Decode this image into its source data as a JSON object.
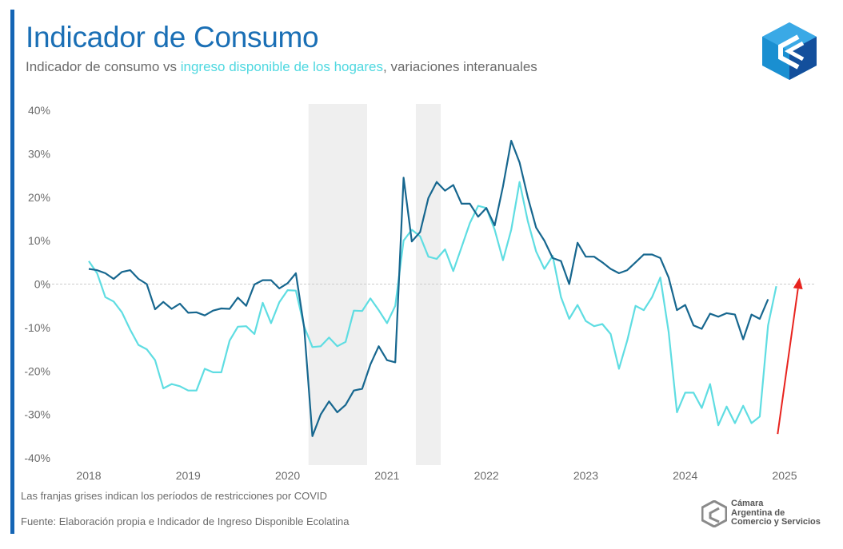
{
  "header": {
    "title": "Indicador de Consumo",
    "subtitle_prefix": "Indicador de consumo vs ",
    "subtitle_highlight": "ingreso disponible de los hogares",
    "subtitle_suffix": ", variaciones interanuales"
  },
  "footer": {
    "note": "Las franjas grises indican los períodos de restricciones por COVID",
    "source": "Fuente: Elaboración propia e Indicador de Ingreso Disponible Ecolatina",
    "org_line1": "Cámara",
    "org_line2": "Argentina de",
    "org_line3": "Comercio y Servicios"
  },
  "colors": {
    "title": "#1a6fb5",
    "consumo": "#17678f",
    "ingreso": "#5fdde2",
    "covid_band": "#efefef",
    "arrow": "#e8231e"
  },
  "chart_data": {
    "type": "line",
    "ylim": [
      -40,
      40
    ],
    "xlim": [
      2018,
      2025.25
    ],
    "y_ticks": [
      40,
      30,
      20,
      10,
      0,
      -10,
      -20,
      -30,
      -40
    ],
    "y_tick_labels": [
      "40%",
      "30%",
      "20%",
      "10%",
      "0%",
      "-10%",
      "-20%",
      "-30%",
      "-40%"
    ],
    "x_ticks": [
      2018,
      2019,
      2020,
      2021,
      2022,
      2023,
      2024,
      2025
    ],
    "x_tick_labels": [
      "2018",
      "2019",
      "2020",
      "2021",
      "2022",
      "2023",
      "2024",
      "2025"
    ],
    "x_start": "2018-01",
    "shaded_periods": [
      [
        2020.21,
        2020.8
      ],
      [
        2021.29,
        2021.54
      ]
    ],
    "grid": false,
    "zero_line": true,
    "series": [
      {
        "name": "Indicador de consumo",
        "values": [
          3.5,
          3.2,
          2.5,
          1.2,
          2.8,
          3.2,
          1.2,
          0,
          -5.8,
          -4.1,
          -5.7,
          -4.5,
          -6.6,
          -6.5,
          -7.2,
          -6.1,
          -5.6,
          -5.7,
          -3.1,
          -5.0,
          -0.1,
          0.9,
          0.9,
          -1.0,
          0.2,
          2.5,
          -10.0,
          -35.0,
          -30.0,
          -27.0,
          -29.5,
          -27.8,
          -24.5,
          -24.1,
          -18.5,
          -14.3,
          -17.5,
          -18.0,
          24.5,
          9.8,
          12.0,
          19.8,
          23.5,
          21.5,
          22.8,
          18.5,
          18.5,
          15.5,
          17.5,
          13.5,
          22.5,
          33.0,
          28.0,
          20.0,
          13.0,
          10.0,
          6.0,
          5.3,
          0,
          9.5,
          6.3,
          6.3,
          5.0,
          3.5,
          2.5,
          3.2,
          5.0,
          6.8,
          6.8,
          6.0,
          1.5,
          -6.0,
          -4.8,
          -9.5,
          -10.3,
          -6.8,
          -7.5,
          -6.7,
          -7.0,
          -12.7,
          -7.0,
          -8.0,
          -3.5
        ]
      },
      {
        "name": "Ingreso disponible de los hogares",
        "values": [
          5.3,
          2.5,
          -3.0,
          -4.0,
          -6.5,
          -10.5,
          -14.0,
          -15.0,
          -17.5,
          -24.0,
          -23.0,
          -23.5,
          -24.5,
          -24.5,
          -19.5,
          -20.3,
          -20.3,
          -13.0,
          -9.8,
          -9.7,
          -11.5,
          -4.3,
          -9.0,
          -4.2,
          -1.4,
          -1.5,
          -9.8,
          -14.5,
          -14.3,
          -12.3,
          -14.3,
          -13.3,
          -6.1,
          -6.2,
          -3.3,
          -6.0,
          -9.0,
          -5.0,
          10.0,
          12.5,
          11.0,
          6.3,
          5.8,
          8.0,
          3.0,
          8.5,
          14.0,
          18.0,
          17.5,
          12.5,
          5.5,
          12.5,
          23.5,
          14.5,
          7.5,
          3.5,
          6.5,
          -3.0,
          -8.0,
          -4.8,
          -8.5,
          -9.7,
          -9.2,
          -11.5,
          -19.5,
          -13.0,
          -5.0,
          -6.0,
          -3.0,
          1.5,
          -11.0,
          -29.5,
          -25.0,
          -25.0,
          -28.5,
          -23.0,
          -32.5,
          -28.2,
          -32.0,
          -28.0,
          -32.0,
          -30.5,
          -9.5,
          -0.5
        ]
      }
    ],
    "annotation": {
      "type": "arrow",
      "from": [
        2024.93,
        -34.5
      ],
      "to": [
        2025.15,
        1.5
      ]
    }
  }
}
